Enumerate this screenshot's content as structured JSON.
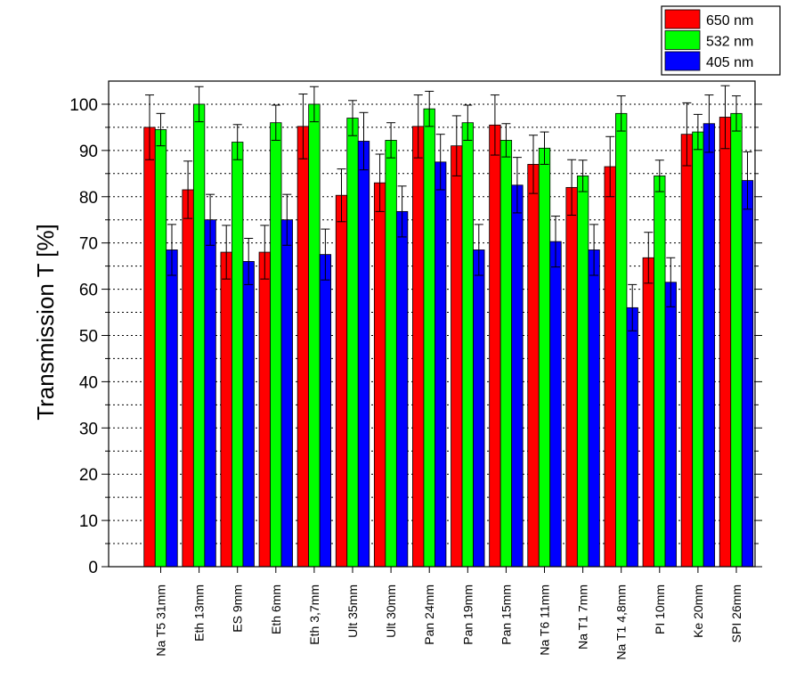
{
  "chart_data": {
    "type": "bar",
    "title": "",
    "xlabel": "",
    "ylabel": "Transmission T [%]",
    "ylim": [
      0,
      105
    ],
    "yticks": [
      "0",
      "10",
      "20",
      "30",
      "40",
      "50",
      "60",
      "70",
      "80",
      "90",
      "100"
    ],
    "grid": "horizontal dotted",
    "legend_position": "top-right",
    "error_bars": true,
    "categories": [
      "Na T5 31mm",
      "Eth 13mm",
      "ES 9mm",
      "Eth 6mm",
      "Eth 3,7mm",
      "Ult 35mm",
      "Ult 30mm",
      "Pan 24mm",
      "Pan 19mm",
      "Pan 15mm",
      "Na T6 11mm",
      "Na T1 7mm",
      "Na T1 4,8mm",
      "PI 10mm",
      "Ke 20mm",
      "SPI 26mm"
    ],
    "series": [
      {
        "name": "650 nm",
        "color": "#ff0000",
        "values": [
          95.0,
          81.5,
          68.0,
          68.0,
          95.2,
          80.3,
          83.0,
          95.2,
          91.0,
          95.5,
          87.0,
          82.0,
          86.5,
          66.8,
          93.5,
          97.2
        ],
        "errors": [
          7.0,
          6.2,
          5.8,
          5.8,
          7.0,
          5.7,
          6.2,
          6.8,
          6.5,
          6.5,
          6.3,
          6.0,
          6.5,
          5.5,
          6.8,
          6.8
        ]
      },
      {
        "name": "532 nm",
        "color": "#00ff00",
        "values": [
          94.5,
          100.0,
          91.8,
          96.0,
          100.0,
          97.0,
          92.2,
          99.0,
          96.0,
          92.2,
          90.5,
          84.5,
          98.0,
          84.5,
          94.0,
          98.0
        ],
        "errors": [
          3.5,
          3.8,
          3.8,
          3.8,
          3.8,
          3.8,
          3.8,
          3.8,
          3.8,
          3.6,
          3.5,
          3.4,
          3.8,
          3.4,
          3.8,
          3.8
        ]
      },
      {
        "name": "405 nm",
        "color": "#0000ff",
        "values": [
          68.5,
          75.0,
          66.0,
          75.0,
          67.5,
          92.0,
          76.8,
          87.5,
          68.5,
          82.5,
          70.3,
          68.5,
          56.0,
          61.5,
          95.8,
          83.5
        ],
        "errors": [
          5.5,
          5.5,
          5.0,
          5.5,
          5.5,
          6.2,
          5.5,
          6.0,
          5.5,
          6.0,
          5.5,
          5.5,
          5.0,
          5.3,
          6.2,
          6.2
        ]
      }
    ]
  }
}
